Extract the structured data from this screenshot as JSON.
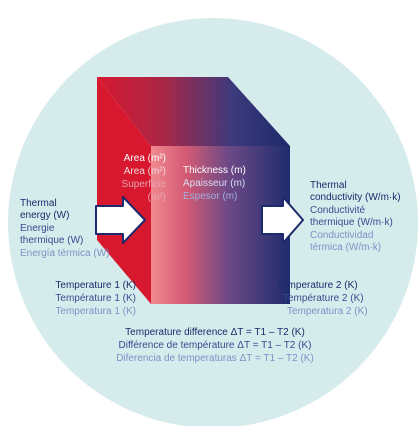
{
  "colors": {
    "circle": "#d6ecec",
    "red": "#d8182f",
    "navy": "#1f2c6e",
    "arrow_stroke": "#1b2a6b",
    "label_dark": "#1b2a6b",
    "label_mid": "#3a4a8f",
    "label_light": "#7f90c6"
  },
  "icons": {
    "left_arrow": "arrow-right-icon",
    "right_arrow": "arrow-right-icon"
  },
  "area": {
    "en": "Area (m²)",
    "fr": "Area (m²)",
    "es_1": "Superficie",
    "es_2": "(m²)"
  },
  "thickness": {
    "en": "Thickness (m)",
    "fr": "Apaisseur (m)",
    "es": "Espesor (m)"
  },
  "thermal_energy": {
    "en_1": "Thermal",
    "en_2": "energy (W)",
    "fr_1": "Energie",
    "fr_2": "thermique (W)",
    "es": "Energía térmica (W)"
  },
  "thermal_conductivity": {
    "en_1": "Thermal",
    "en_2": "conductivity (W/m·k)",
    "fr_1": "Conductivité",
    "fr_2": "thermique (W/m·k)",
    "es_1": "Conductividad",
    "es_2": "térmica (W/m·k)"
  },
  "temperature1": {
    "en": "Temperature 1  (K)",
    "fr": "Température 1 (K)",
    "es": "Temperatura 1 (K)"
  },
  "temperature2": {
    "en": "Temperature 2  (K)",
    "fr": "Température 2 (K)",
    "es": "Temperatura 2 (K)"
  },
  "temperature_difference": {
    "en": "Temperature difference ΔT = T1 – T2 (K)",
    "fr": "Différence de température ΔT = T1 – T2 (K)",
    "es": "Diferencia de temperaturas ΔT = T1 – T2 (K)"
  }
}
